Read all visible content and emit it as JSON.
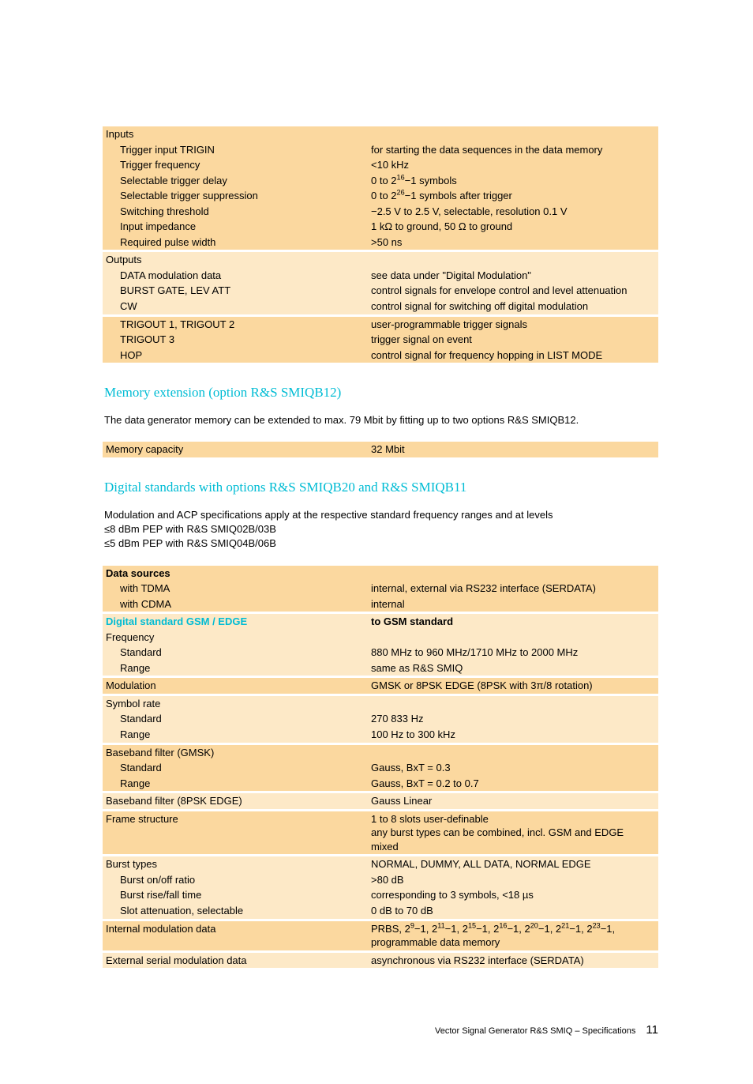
{
  "colors": {
    "band_dark": "#fbd89f",
    "band_light": "#fde9c7",
    "heading": "#00bcd4",
    "text": "#000000",
    "page_bg": "#ffffff"
  },
  "typography": {
    "body_family": "Futura / Trebuchet MS",
    "heading_family": "Didot / Bodoni serif",
    "body_size_pt": 10,
    "heading_size_pt": 13
  },
  "section_inputs": {
    "header": "Inputs",
    "rows": [
      {
        "l": "Trigger input TRIGIN",
        "r": "for starting the data sequences in the data memory"
      },
      {
        "l": "Trigger frequency",
        "r": "<10 kHz"
      },
      {
        "l": "Selectable trigger delay",
        "r_html": "0 to 2<sup>16</sup>−1 symbols"
      },
      {
        "l": "Selectable trigger suppression",
        "r_html": "0 to 2<sup>26</sup>−1 symbols after trigger"
      },
      {
        "l": "Switching threshold",
        "r": "−2.5 V to 2.5 V, selectable, resolution 0.1 V"
      },
      {
        "l": "Input impedance",
        "r": "1 kΩ to ground, 50 Ω to ground"
      },
      {
        "l": "Required pulse width",
        "r": ">50 ns"
      }
    ]
  },
  "section_outputs": {
    "header": "Outputs",
    "group1": [
      {
        "l": "DATA modulation data",
        "r": "see data under \"Digital Modulation\""
      },
      {
        "l": "BURST GATE, LEV ATT",
        "r": "control signals for envelope control and level attenuation"
      },
      {
        "l": "CW",
        "r": "control signal for switching off digital modulation"
      }
    ],
    "group2": [
      {
        "l": "TRIGOUT 1, TRIGOUT 2",
        "r": "user-programmable trigger signals"
      },
      {
        "l": "TRIGOUT 3",
        "r": "trigger signal on event"
      },
      {
        "l": "HOP",
        "r": "control signal for frequency hopping in LIST MODE"
      }
    ]
  },
  "heading_memory": "Memory extension (option R&S SMIQB12)",
  "para_memory": "The data generator memory can be extended to max. 79 Mbit by fitting up to two options R&S SMIQB12.",
  "row_memory": {
    "l": "Memory capacity",
    "r": "32 Mbit"
  },
  "heading_digital": "Digital standards with options R&S SMIQB20 and R&S SMIQB11",
  "para_digital_l1": "Modulation and ACP specifications apply at the respective standard frequency ranges and at levels",
  "para_digital_l2": "≤8 dBm PEP with R&S SMIQ02B/03B",
  "para_digital_l3": "≤5 dBm PEP with R&S SMIQ04B/06B",
  "ds_block": {
    "data_sources": {
      "header": "Data sources",
      "rows": [
        {
          "l": "with TDMA",
          "r": "internal, external via RS232 interface (SERDATA)"
        },
        {
          "l": "with CDMA",
          "r": "internal"
        }
      ]
    },
    "gsm_header_l": "Digital standard GSM / EDGE",
    "gsm_header_r": "to GSM standard",
    "frequency": {
      "header": "Frequency",
      "rows": [
        {
          "l": "Standard",
          "r": "880 MHz to 960 MHz/1710 MHz to 2000 MHz"
        },
        {
          "l": "Range",
          "r": "same as R&S SMIQ"
        }
      ]
    },
    "modulation": {
      "l": "Modulation",
      "r": "GMSK or 8PSK EDGE (8PSK with 3π/8 rotation)"
    },
    "symbol_rate": {
      "header": "Symbol rate",
      "rows": [
        {
          "l": "Standard",
          "r": "270 833 Hz"
        },
        {
          "l": "Range",
          "r": "100 Hz to 300 kHz"
        }
      ]
    },
    "bb_gmsk": {
      "header": "Baseband filter (GMSK)",
      "rows": [
        {
          "l": "Standard",
          "r": "Gauss, BxT = 0.3"
        },
        {
          "l": "Range",
          "r": "Gauss, BxT = 0.2 to 0.7"
        }
      ]
    },
    "bb_8psk": {
      "l": "Baseband filter (8PSK EDGE)",
      "r": "Gauss Linear"
    },
    "frame": {
      "l": "Frame structure",
      "r1": "1 to 8 slots user-definable",
      "r2": "any burst types can be combined, incl. GSM and EDGE mixed"
    },
    "burst": {
      "rows": [
        {
          "l": "Burst types",
          "r": "NORMAL, DUMMY, ALL DATA, NORMAL EDGE"
        },
        {
          "l": "Burst on/off ratio",
          "r": ">80 dB",
          "indent": true
        },
        {
          "l": "Burst rise/fall time",
          "r": "corresponding to 3 symbols, <18 µs",
          "indent": true
        },
        {
          "l": "Slot attenuation, selectable",
          "r": "0 dB to 70 dB",
          "indent": true
        }
      ]
    },
    "int_mod": {
      "l": "Internal modulation data",
      "r_html": "PRBS, 2<sup>9</sup>−1, 2<sup>11</sup>−1, 2<sup>15</sup>−1, 2<sup>16</sup>−1, 2<sup>20</sup>−1, 2<sup>21</sup>−1, 2<sup>23</sup>−1, programmable data memory"
    },
    "ext_mod": {
      "l": "External serial modulation data",
      "r": "asynchronous via RS232 interface (SERDATA)"
    }
  },
  "footer": {
    "text": "Vector Signal Generator R&S SMIQ – Specifications",
    "page": "11"
  }
}
